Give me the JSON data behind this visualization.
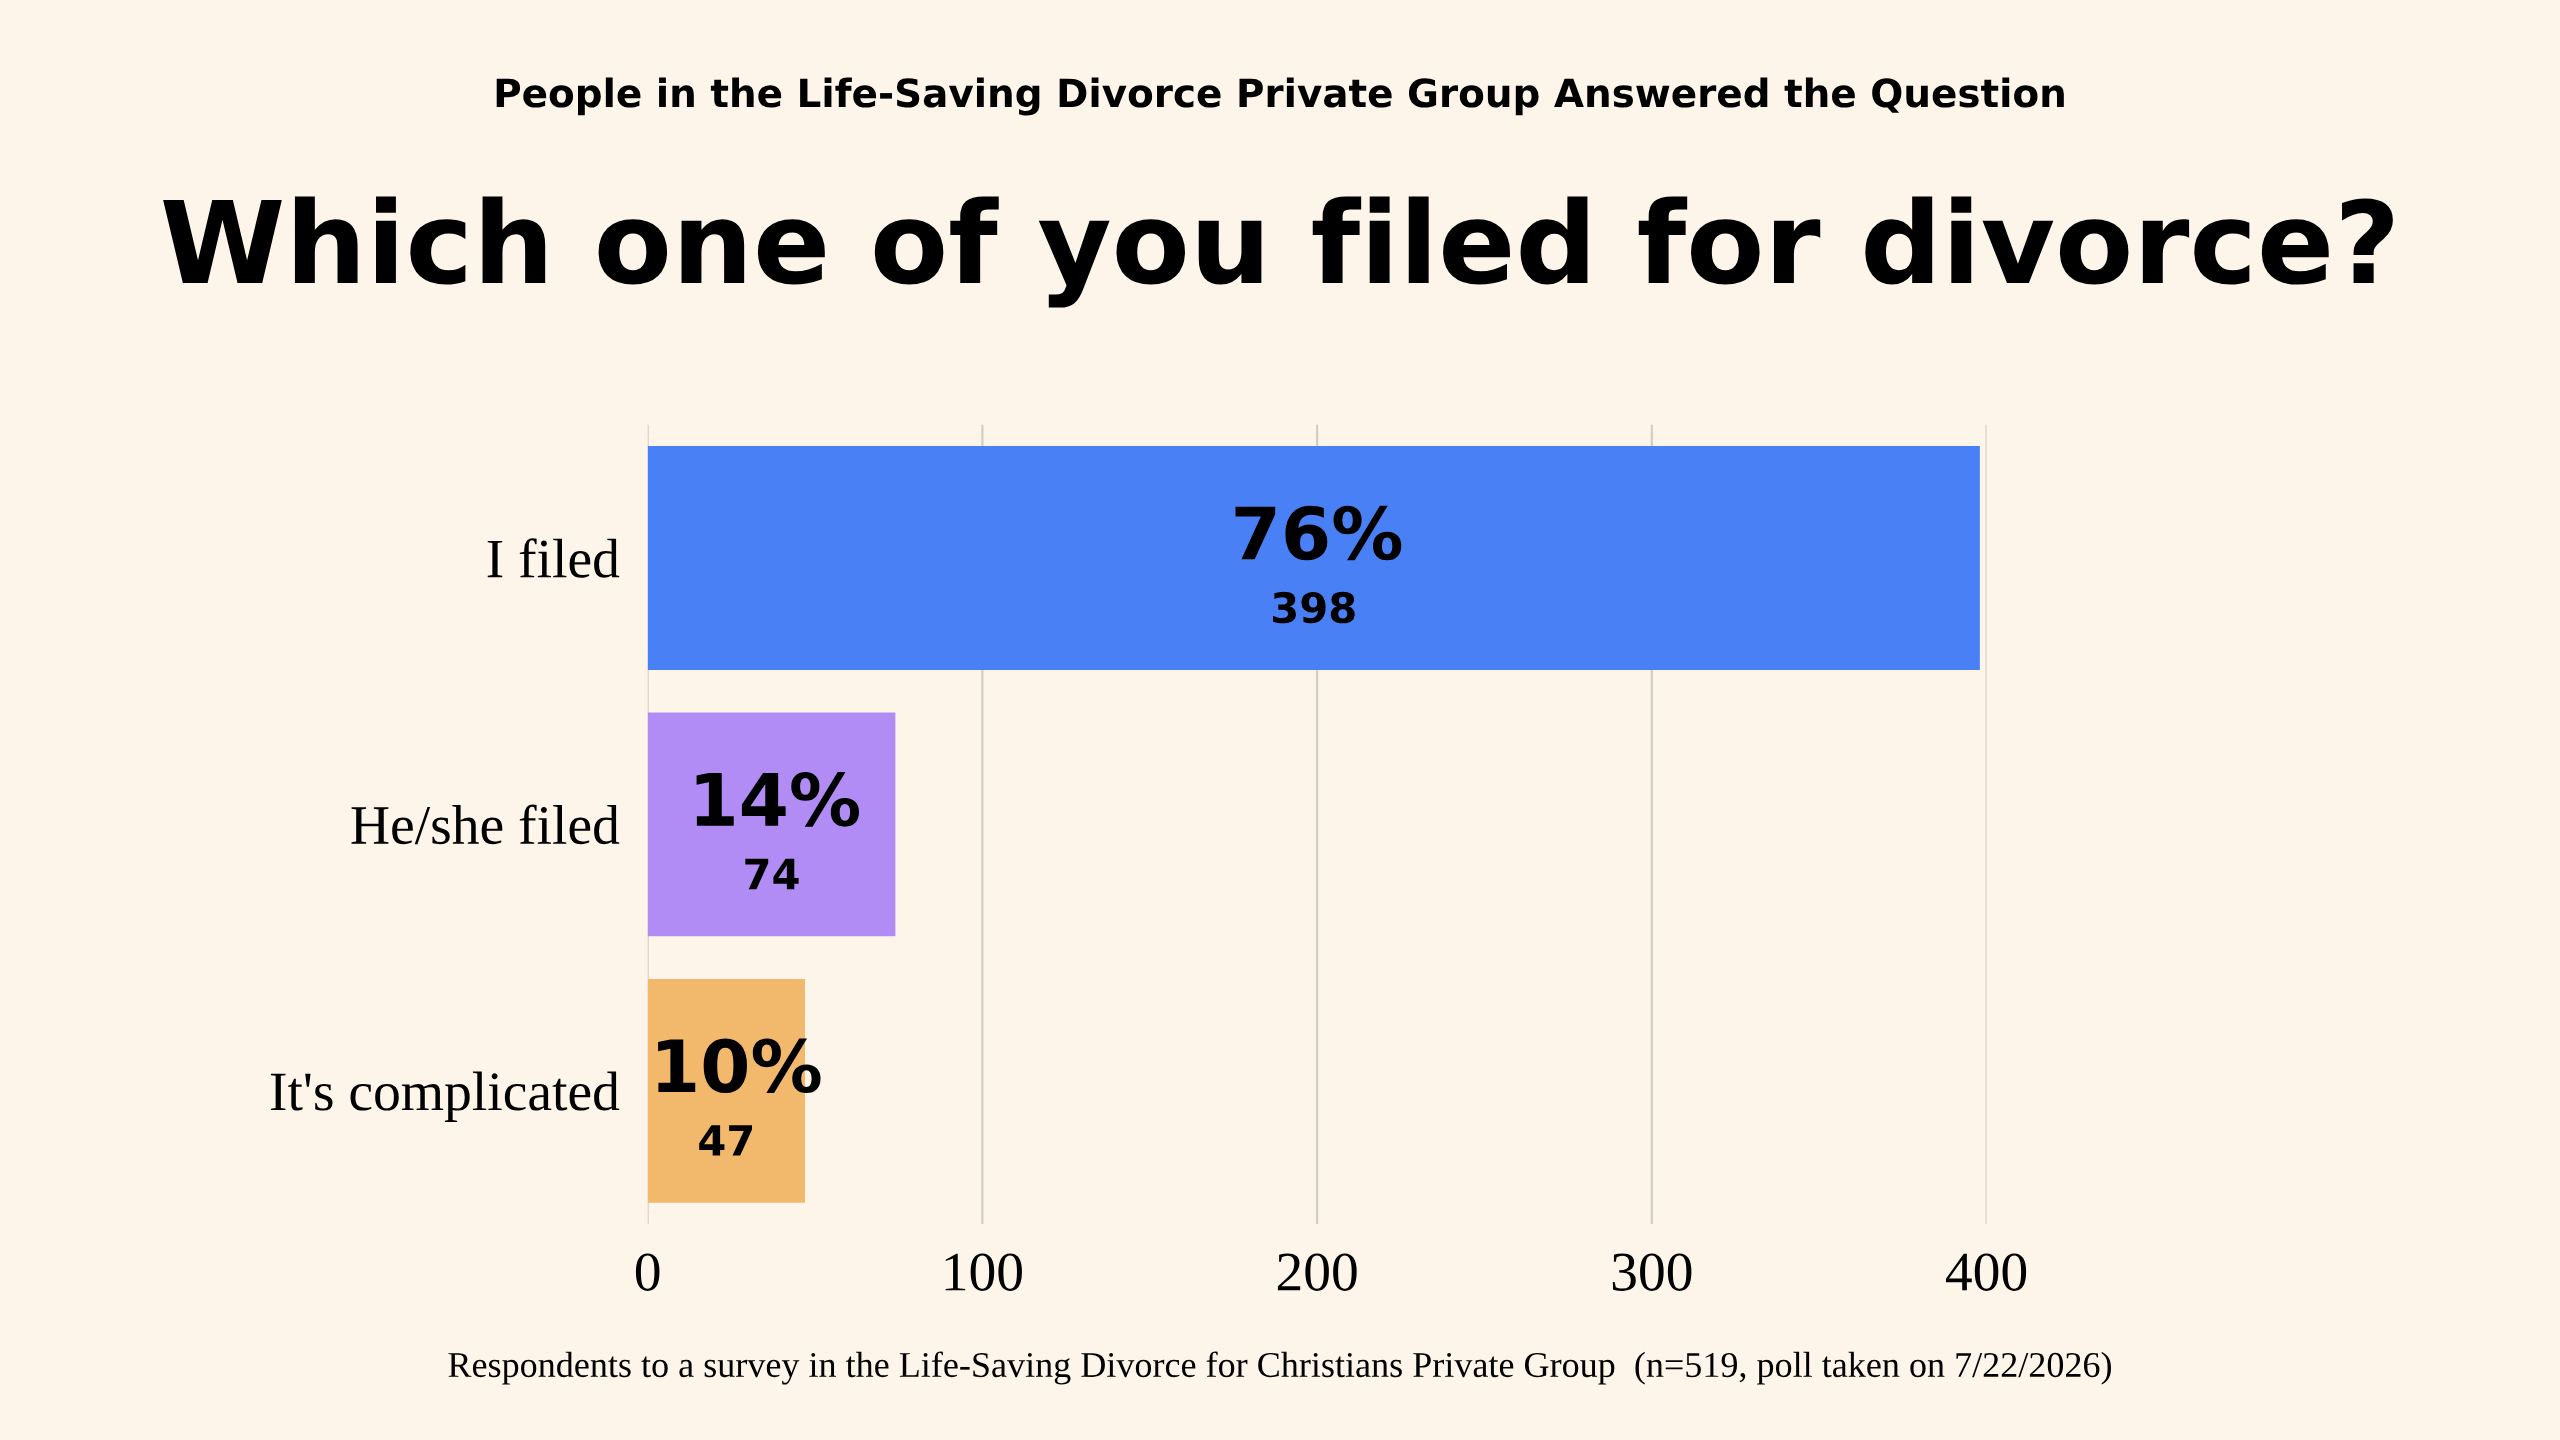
{
  "chart_data": {
    "type": "bar",
    "orientation": "horizontal",
    "subtitle": "People in the Life-Saving Divorce Private Group Answered the Question",
    "title": "Which one of you filed for divorce?",
    "categories": [
      "I filed",
      "He/she filed",
      "It's complicated"
    ],
    "values": [
      398,
      74,
      47
    ],
    "colors": [
      "#4a80f5",
      "#b08cf4",
      "#f2b86b"
    ],
    "value_labels": [
      "398",
      "74",
      "47"
    ],
    "xlim": [
      0,
      400
    ],
    "xticks": [
      0,
      100,
      200,
      300,
      400
    ],
    "grid": "x",
    "annotations": [
      "76%",
      "14%",
      "10%",
      "Respondents to a survey in the Life-Saving Divorce for Christians Private Group  (n=519, poll taken on 7/22/2026)"
    ]
  }
}
